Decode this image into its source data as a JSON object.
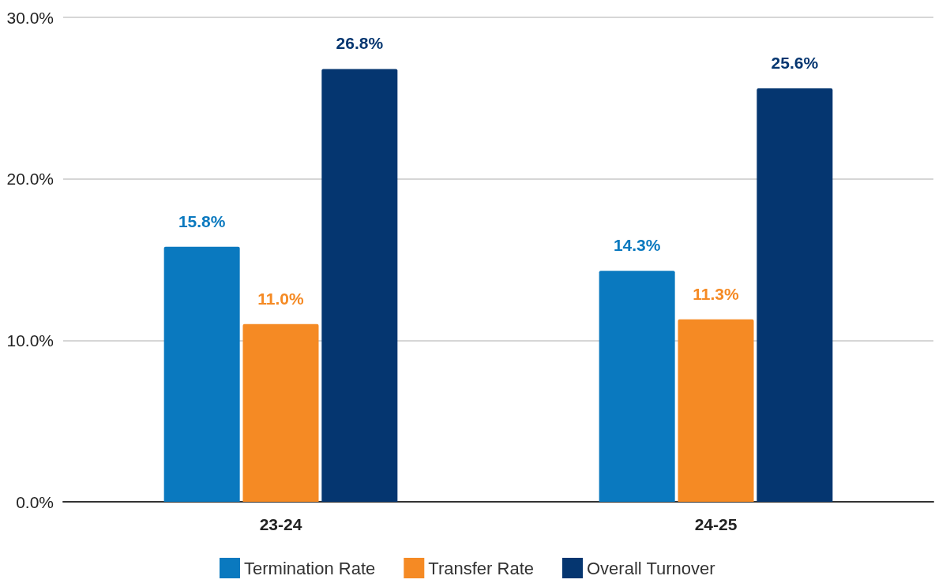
{
  "chart_data": {
    "type": "bar",
    "categories": [
      "23-24",
      "24-25"
    ],
    "series": [
      {
        "name": "Termination Rate",
        "color": "#0a79bf",
        "values": [
          15.8,
          14.3
        ],
        "value_labels": [
          "15.8%",
          "14.3%"
        ]
      },
      {
        "name": "Transfer Rate",
        "color": "#f58a24",
        "values": [
          11.0,
          11.3
        ],
        "value_labels": [
          "11.0%",
          "11.3%"
        ]
      },
      {
        "name": "Overall Turnover",
        "color": "#053670",
        "values": [
          26.8,
          25.6
        ],
        "value_labels": [
          "26.8%",
          "25.6%"
        ]
      }
    ],
    "ylim": [
      0,
      30
    ],
    "yticks": [
      {
        "value": 0,
        "label": "0.0%"
      },
      {
        "value": 10,
        "label": "10.0%"
      },
      {
        "value": 20,
        "label": "20.0%"
      },
      {
        "value": 30,
        "label": "30.0%"
      }
    ],
    "grid": "y",
    "legend": "bottom"
  }
}
